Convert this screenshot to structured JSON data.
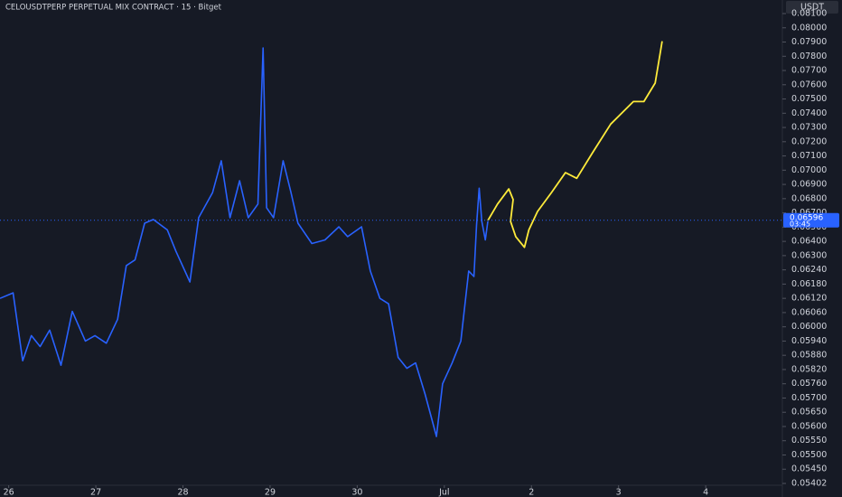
{
  "chart_data": {
    "type": "line",
    "title": "CELOUSDTPERP PERPETUAL MIX CONTRACT · 15 · Bitget",
    "y_unit": "USDT",
    "xlim": [
      -0.1,
      8.88
    ],
    "xticks": [
      {
        "value": 0,
        "label": "26"
      },
      {
        "value": 1,
        "label": "27"
      },
      {
        "value": 2,
        "label": "28"
      },
      {
        "value": 3,
        "label": "29"
      },
      {
        "value": 4,
        "label": "30"
      },
      {
        "value": 5,
        "label": "Jul"
      },
      {
        "value": 6,
        "label": "2"
      },
      {
        "value": 7,
        "label": "3"
      },
      {
        "value": 8,
        "label": "4"
      }
    ],
    "ylim": [
      0.05395,
      0.0819
    ],
    "yticks": [
      {
        "value": 0.081,
        "label": "0.08100"
      },
      {
        "value": 0.08,
        "label": "0.08000"
      },
      {
        "value": 0.079,
        "label": "0.07900"
      },
      {
        "value": 0.078,
        "label": "0.07800"
      },
      {
        "value": 0.077,
        "label": "0.07700"
      },
      {
        "value": 0.076,
        "label": "0.07600"
      },
      {
        "value": 0.075,
        "label": "0.07500"
      },
      {
        "value": 0.074,
        "label": "0.07400"
      },
      {
        "value": 0.073,
        "label": "0.07300"
      },
      {
        "value": 0.072,
        "label": "0.07200"
      },
      {
        "value": 0.071,
        "label": "0.07100"
      },
      {
        "value": 0.07,
        "label": "0.07000"
      },
      {
        "value": 0.069,
        "label": "0.06900"
      },
      {
        "value": 0.068,
        "label": "0.06800"
      },
      {
        "value": 0.067,
        "label": "0.06700"
      },
      {
        "value": 0.065,
        "label": "0.06500"
      },
      {
        "value": 0.064,
        "label": "0.06400"
      },
      {
        "value": 0.063,
        "label": "0.06300"
      },
      {
        "value": 0.0624,
        "label": "0.06240"
      },
      {
        "value": 0.0618,
        "label": "0.06180"
      },
      {
        "value": 0.0612,
        "label": "0.06120"
      },
      {
        "value": 0.0606,
        "label": "0.06060"
      },
      {
        "value": 0.06,
        "label": "0.06000"
      },
      {
        "value": 0.0594,
        "label": "0.05940"
      },
      {
        "value": 0.0588,
        "label": "0.05880"
      },
      {
        "value": 0.0582,
        "label": "0.05820"
      },
      {
        "value": 0.0576,
        "label": "0.05760"
      },
      {
        "value": 0.057,
        "label": "0.05700"
      },
      {
        "value": 0.0565,
        "label": "0.05650"
      },
      {
        "value": 0.056,
        "label": "0.05600"
      },
      {
        "value": 0.0555,
        "label": "0.05550"
      },
      {
        "value": 0.055,
        "label": "0.05500"
      },
      {
        "value": 0.0545,
        "label": "0.05450"
      },
      {
        "value": 0.05402,
        "label": "0.05402"
      }
    ],
    "last_price": {
      "value": 0.06596,
      "label": "0.06596"
    },
    "countdown": "03:45",
    "grid": false,
    "series": [
      {
        "color": "#2962ff",
        "x": [
          -0.1,
          0.05,
          0.16,
          0.26,
          0.36,
          0.47,
          0.6,
          0.73,
          0.88,
          0.99,
          1.12,
          1.25,
          1.35,
          1.45,
          1.56,
          1.66,
          1.82,
          1.92,
          2.08,
          2.18,
          2.34,
          2.44,
          2.54,
          2.65,
          2.75,
          2.86,
          2.92,
          2.96,
          3.04,
          3.15,
          3.24,
          3.32,
          3.48,
          3.63,
          3.79,
          3.89,
          4.05,
          4.15,
          4.26,
          4.36,
          4.47,
          4.57,
          4.67,
          4.78,
          4.91,
          4.98,
          5.09,
          5.19,
          5.28,
          5.34,
          5.37,
          5.4,
          5.43,
          5.47,
          5.5
        ],
        "values": [
          0.0612,
          0.06143,
          0.05857,
          0.05963,
          0.05917,
          0.05986,
          0.05838,
          0.06065,
          0.0594,
          0.05963,
          0.05931,
          0.06032,
          0.06258,
          0.06282,
          0.06556,
          0.06608,
          0.06481,
          0.0633,
          0.06189,
          0.06633,
          0.06843,
          0.07066,
          0.06633,
          0.06926,
          0.06633,
          0.06762,
          0.07858,
          0.06736,
          0.06633,
          0.07066,
          0.06843,
          0.06556,
          0.06385,
          0.0641,
          0.06505,
          0.06433,
          0.06505,
          0.06235,
          0.0612,
          0.06097,
          0.05871,
          0.05825,
          0.05848,
          0.05715,
          0.05565,
          0.0576,
          0.05848,
          0.0594,
          0.06235,
          0.06212,
          0.06531,
          0.06873,
          0.06582,
          0.0641,
          0.06582
        ]
      },
      {
        "color": "#ffeb3b",
        "x": [
          5.5,
          5.61,
          5.74,
          5.79,
          5.76,
          5.82,
          5.92,
          5.97,
          6.07,
          6.23,
          6.39,
          6.52,
          6.7,
          6.91,
          7.17,
          7.29,
          7.42,
          7.48,
          7.5
        ],
        "values": [
          0.06592,
          0.06762,
          0.06868,
          0.06794,
          0.06582,
          0.06433,
          0.06358,
          0.06481,
          0.0671,
          0.06843,
          0.06983,
          0.06943,
          0.07122,
          0.07324,
          0.07482,
          0.07482,
          0.07612,
          0.07831,
          0.07906
        ]
      }
    ]
  }
}
